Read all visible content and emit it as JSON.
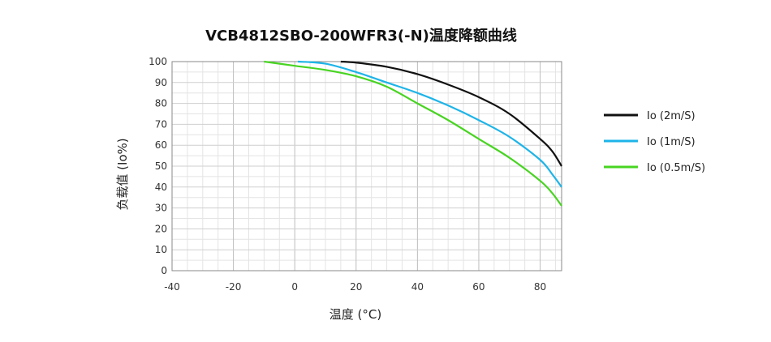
{
  "chart_data": {
    "type": "line",
    "title": "VCB4812SBO-200WFR3(-N)温度降额曲线",
    "xlabel": "温度 (°C)",
    "ylabel": "负载值 (Io%)",
    "xlim": [
      -40,
      87
    ],
    "ylim": [
      0,
      100
    ],
    "x_ticks": [
      -40,
      -20,
      0,
      20,
      40,
      60,
      80
    ],
    "y_ticks": [
      0,
      10,
      20,
      30,
      40,
      50,
      60,
      70,
      80,
      90,
      100
    ],
    "grid": true,
    "legend": "right",
    "series": [
      {
        "name": "Io (2m/S)",
        "color": "#111111",
        "x": [
          15,
          20,
          30,
          40,
          50,
          60,
          70,
          80,
          84,
          87
        ],
        "y": [
          100,
          99.5,
          97.5,
          94,
          89,
          83,
          75,
          63,
          57,
          50
        ]
      },
      {
        "name": "Io (1m/S)",
        "color": "#1eb4e8",
        "x": [
          1,
          10,
          20,
          30,
          40,
          50,
          60,
          70,
          80,
          84,
          87
        ],
        "y": [
          100,
          99,
          95,
          90,
          85,
          79,
          72,
          64,
          53,
          46,
          40
        ]
      },
      {
        "name": "Io (0.5m/S)",
        "color": "#48d422",
        "x": [
          -10,
          0,
          10,
          20,
          30,
          40,
          50,
          60,
          70,
          80,
          84,
          87
        ],
        "y": [
          100,
          98,
          96,
          93,
          88,
          80,
          72,
          63,
          54,
          43,
          37,
          31
        ]
      }
    ]
  }
}
